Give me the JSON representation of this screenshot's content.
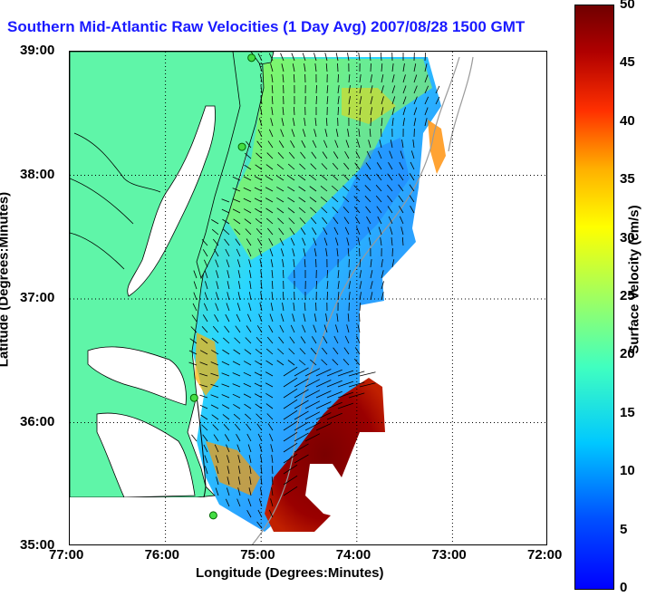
{
  "title": "Southern Mid-Atlantic Raw Velocities (1 Day Avg) 2007/08/28 1500 GMT",
  "x_axis": {
    "title": "Longitude (Degrees:Minutes)",
    "ticks": [
      "77:00",
      "76:00",
      "75:00",
      "74:00",
      "73:00",
      "72:00"
    ]
  },
  "y_axis": {
    "title": "Latitude (Degrees:Minutes)",
    "ticks": [
      "39:00",
      "38:00",
      "37:00",
      "36:00",
      "35:00"
    ]
  },
  "colorbar": {
    "title": "Surface Velocity (cm/s)",
    "ticks": [
      "50",
      "45",
      "40",
      "35",
      "30",
      "25",
      "20",
      "15",
      "10",
      "5",
      "0"
    ],
    "range": [
      0,
      50
    ],
    "colormap": "jet"
  },
  "map": {
    "lon_range": [
      -77.0,
      -72.0
    ],
    "lat_range": [
      35.0,
      39.0
    ],
    "land_color": "#5ff5a8",
    "grid": "dotted",
    "stations": [
      {
        "lon": -75.1,
        "lat": 38.95
      },
      {
        "lon": -75.2,
        "lat": 38.23
      },
      {
        "lon": -75.7,
        "lat": 36.2
      },
      {
        "lon": -75.5,
        "lat": 35.25
      }
    ]
  }
}
